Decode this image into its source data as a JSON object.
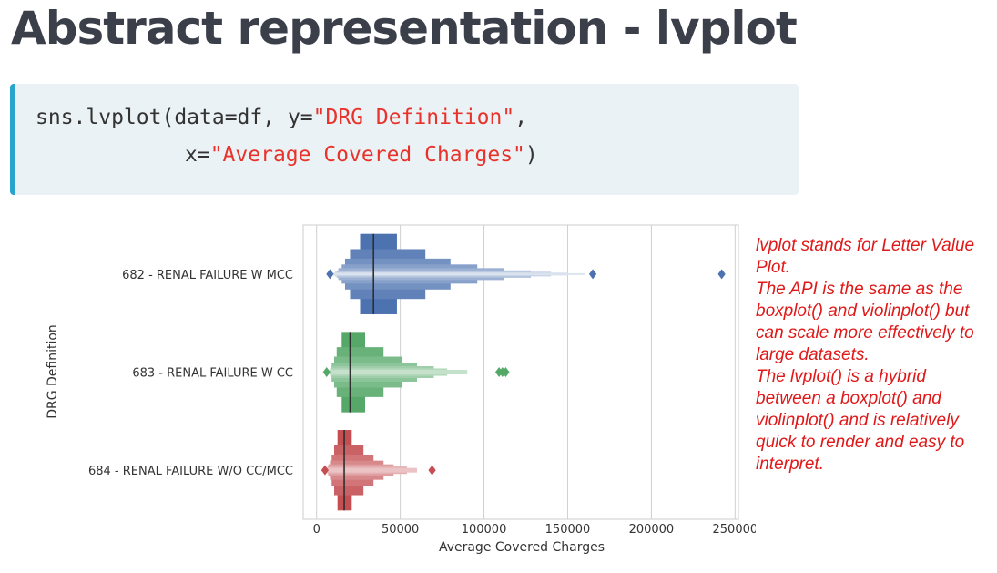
{
  "slide": {
    "title": "Abstract representation - lvplot"
  },
  "code": {
    "line1_prefix": "sns.lvplot(data=df, y=",
    "line1_string": "\"DRG Definition\"",
    "line1_suffix": ",",
    "line2_prefix": "x=",
    "line2_string": "\"Average Covered Charges\"",
    "line2_suffix": ")"
  },
  "note": {
    "paragraphs": [
      "lvplot stands for Letter Value Plot.",
      "The API is the same as the boxplot() and violinplot() but can scale more effectively to large datasets.",
      "The lvplot() is a hybrid between a boxplot() and violinplot() and is relatively quick to render and easy to interpret."
    ]
  },
  "colors": {
    "series": [
      "#4c72b0",
      "#55a868",
      "#c44e52"
    ],
    "code_string": "#e8322a",
    "code_accent": "#2aa3cf",
    "note_text": "#e01818"
  },
  "chart_data": {
    "type": "lvplot",
    "orientation": "horizontal",
    "xlabel": "Average Covered Charges",
    "ylabel": "DRG Definition",
    "xlim": [
      -8000,
      252000
    ],
    "xticks": [
      0,
      50000,
      100000,
      150000,
      200000,
      250000
    ],
    "xtick_labels": [
      "0",
      "50000",
      "100000",
      "150000",
      "200000",
      "250000"
    ],
    "grid": "vertical",
    "categories": [
      "682 - RENAL FAILURE W MCC",
      "683 - RENAL FAILURE W CC",
      "684 - RENAL FAILURE W/O CC/MCC"
    ],
    "series": [
      {
        "median": 34000,
        "boxes": [
          [
            26000,
            48000
          ],
          [
            20000,
            65000
          ],
          [
            17000,
            80000
          ],
          [
            15000,
            96000
          ],
          [
            13000,
            112000
          ],
          [
            12000,
            128000
          ],
          [
            11000,
            140000
          ],
          [
            10000,
            150000
          ],
          [
            9000,
            160000
          ]
        ],
        "outliers": [
          8000,
          165000,
          242000
        ]
      },
      {
        "median": 20000,
        "boxes": [
          [
            15000,
            29000
          ],
          [
            12000,
            40000
          ],
          [
            10500,
            51000
          ],
          [
            9000,
            60000
          ],
          [
            8500,
            70000
          ],
          [
            8000,
            78000
          ],
          [
            7500,
            90000
          ]
        ],
        "outliers": [
          6000,
          109000,
          111000,
          113000
        ]
      },
      {
        "median": 16500,
        "boxes": [
          [
            12500,
            21000
          ],
          [
            10500,
            28000
          ],
          [
            9000,
            34000
          ],
          [
            8000,
            40000
          ],
          [
            7000,
            46000
          ],
          [
            6500,
            54000
          ],
          [
            6000,
            60000
          ]
        ],
        "outliers": [
          5000,
          69000
        ]
      }
    ]
  }
}
